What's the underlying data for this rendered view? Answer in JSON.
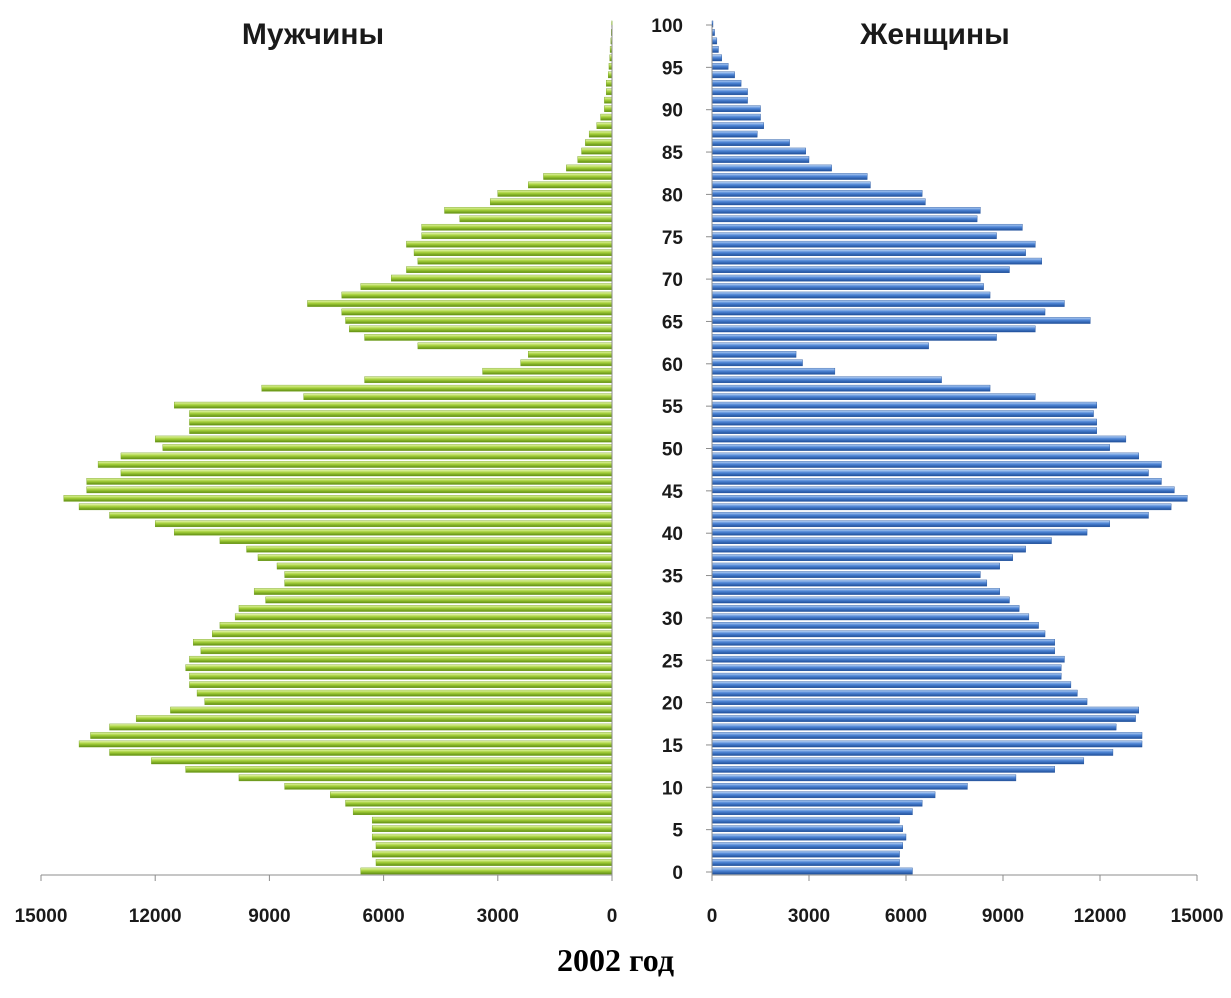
{
  "caption": "2002 год",
  "colors": {
    "male": "#9acd32",
    "male_dark": "#6f9d1a",
    "female": "#4f86d6",
    "female_dark": "#1f4f9a"
  },
  "chart_data": [
    {
      "type": "bar",
      "orientation": "horizontal",
      "title": "Мужчины",
      "direction": "right-to-left",
      "xlim": [
        0,
        15000
      ],
      "x_ticks": [
        "15000",
        "12000",
        "9000",
        "6000",
        "3000",
        "0"
      ],
      "y_ticks": [
        "0",
        "5",
        "10",
        "15",
        "20",
        "25",
        "30",
        "35",
        "40",
        "45",
        "50",
        "55",
        "60",
        "65",
        "70",
        "75",
        "80",
        "85",
        "90",
        "95",
        "100"
      ],
      "ylim": [
        0,
        100
      ],
      "ages": [
        0,
        1,
        2,
        3,
        4,
        5,
        6,
        7,
        8,
        9,
        10,
        11,
        12,
        13,
        14,
        15,
        16,
        17,
        18,
        19,
        20,
        21,
        22,
        23,
        24,
        25,
        26,
        27,
        28,
        29,
        30,
        31,
        32,
        33,
        34,
        35,
        36,
        37,
        38,
        39,
        40,
        41,
        42,
        43,
        44,
        45,
        46,
        47,
        48,
        49,
        50,
        51,
        52,
        53,
        54,
        55,
        56,
        57,
        58,
        59,
        60,
        61,
        62,
        63,
        64,
        65,
        66,
        67,
        68,
        69,
        70,
        71,
        72,
        73,
        74,
        75,
        76,
        77,
        78,
        79,
        80,
        81,
        82,
        83,
        84,
        85,
        86,
        87,
        88,
        89,
        90,
        91,
        92,
        93,
        94,
        95,
        96,
        97,
        98,
        99,
        100
      ],
      "values": [
        6600,
        6200,
        6300,
        6200,
        6300,
        6300,
        6300,
        6800,
        7000,
        7400,
        8600,
        9800,
        11200,
        12100,
        13200,
        14000,
        13700,
        13200,
        12500,
        11600,
        10700,
        10900,
        11100,
        11100,
        11200,
        11100,
        10800,
        11000,
        10500,
        10300,
        9900,
        9800,
        9100,
        9400,
        8600,
        8600,
        8800,
        9300,
        9600,
        10300,
        11500,
        12000,
        13200,
        14000,
        14400,
        13800,
        13800,
        12900,
        13500,
        12900,
        11800,
        12000,
        11100,
        11100,
        11100,
        11500,
        8100,
        9200,
        6500,
        3400,
        2400,
        2200,
        5100,
        6500,
        6900,
        7000,
        7100,
        8000,
        7100,
        6600,
        5800,
        5400,
        5100,
        5200,
        5400,
        5000,
        5000,
        4000,
        4400,
        3200,
        3000,
        2200,
        1800,
        1200,
        900,
        800,
        700,
        600,
        400,
        300,
        200,
        200,
        150,
        150,
        100,
        80,
        60,
        50,
        30,
        20,
        10
      ]
    },
    {
      "type": "bar",
      "orientation": "horizontal",
      "title": "Женщины",
      "direction": "left-to-right",
      "xlim": [
        0,
        15000
      ],
      "x_ticks": [
        "0",
        "3000",
        "6000",
        "9000",
        "12000",
        "15000"
      ],
      "ylim": [
        0,
        100
      ],
      "ages": [
        0,
        1,
        2,
        3,
        4,
        5,
        6,
        7,
        8,
        9,
        10,
        11,
        12,
        13,
        14,
        15,
        16,
        17,
        18,
        19,
        20,
        21,
        22,
        23,
        24,
        25,
        26,
        27,
        28,
        29,
        30,
        31,
        32,
        33,
        34,
        35,
        36,
        37,
        38,
        39,
        40,
        41,
        42,
        43,
        44,
        45,
        46,
        47,
        48,
        49,
        50,
        51,
        52,
        53,
        54,
        55,
        56,
        57,
        58,
        59,
        60,
        61,
        62,
        63,
        64,
        65,
        66,
        67,
        68,
        69,
        70,
        71,
        72,
        73,
        74,
        75,
        76,
        77,
        78,
        79,
        80,
        81,
        82,
        83,
        84,
        85,
        86,
        87,
        88,
        89,
        90,
        91,
        92,
        93,
        94,
        95,
        96,
        97,
        98,
        99,
        100
      ],
      "values": [
        6200,
        5800,
        5800,
        5900,
        6000,
        5900,
        5800,
        6200,
        6500,
        6900,
        7900,
        9400,
        10600,
        11500,
        12400,
        13300,
        13300,
        12500,
        13100,
        13200,
        11600,
        11300,
        11100,
        10800,
        10800,
        10900,
        10600,
        10600,
        10300,
        10100,
        9800,
        9500,
        9200,
        8900,
        8500,
        8300,
        8900,
        9300,
        9700,
        10500,
        11600,
        12300,
        13500,
        14200,
        14700,
        14300,
        13900,
        13500,
        13900,
        13200,
        12300,
        12800,
        11900,
        11900,
        11800,
        11900,
        10000,
        8600,
        7100,
        3800,
        2800,
        2600,
        6700,
        8800,
        10000,
        11700,
        10300,
        10900,
        8600,
        8400,
        8300,
        9200,
        10200,
        9700,
        10000,
        8800,
        9600,
        8200,
        8300,
        6600,
        6500,
        4900,
        4800,
        3700,
        3000,
        2900,
        2400,
        1400,
        1600,
        1500,
        1500,
        1100,
        1100,
        900,
        700,
        500,
        300,
        200,
        150,
        80,
        30
      ]
    }
  ]
}
